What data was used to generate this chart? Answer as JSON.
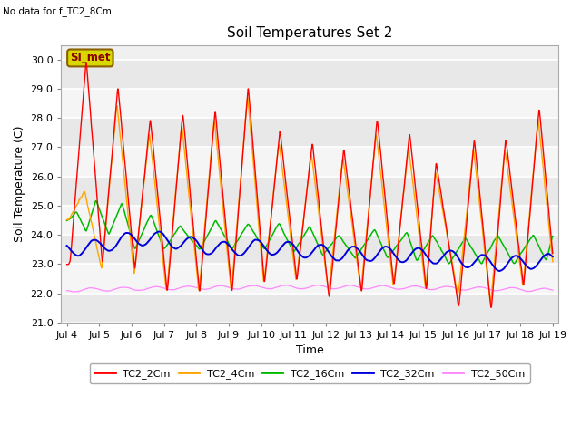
{
  "title": "Soil Temperatures Set 2",
  "note": "No data for f_TC2_8Cm",
  "xlabel": "Time",
  "ylabel": "Soil Temperature (C)",
  "ylim": [
    21.0,
    30.5
  ],
  "yticks": [
    21.0,
    22.0,
    23.0,
    24.0,
    25.0,
    26.0,
    27.0,
    28.0,
    29.0,
    30.0
  ],
  "xlim_days": [
    3.83,
    19.17
  ],
  "xtick_days": [
    4,
    5,
    6,
    7,
    8,
    9,
    10,
    11,
    12,
    13,
    14,
    15,
    16,
    17,
    18,
    19
  ],
  "xtick_labels": [
    "Jul 4",
    "Jul 5",
    "Jul 6",
    "Jul 7",
    "Jul 8",
    "Jul 9",
    "Jul 10",
    "Jul 11",
    "Jul 12",
    "Jul 13",
    "Jul 14",
    "Jul 15",
    "Jul 16",
    "Jul 17",
    "Jul 18",
    "Jul 19"
  ],
  "series_colors": {
    "TC2_2Cm": "#ff0000",
    "TC2_4Cm": "#ffa500",
    "TC2_16Cm": "#00bb00",
    "TC2_32Cm": "#0000dd",
    "TC2_50Cm": "#ff88ff"
  },
  "legend_label": "SI_met",
  "fig_bg": "#ffffff",
  "plot_bg_light": "#f0f0f0",
  "plot_bg_dark": "#e0e0e0",
  "grid_color": "#ffffff"
}
